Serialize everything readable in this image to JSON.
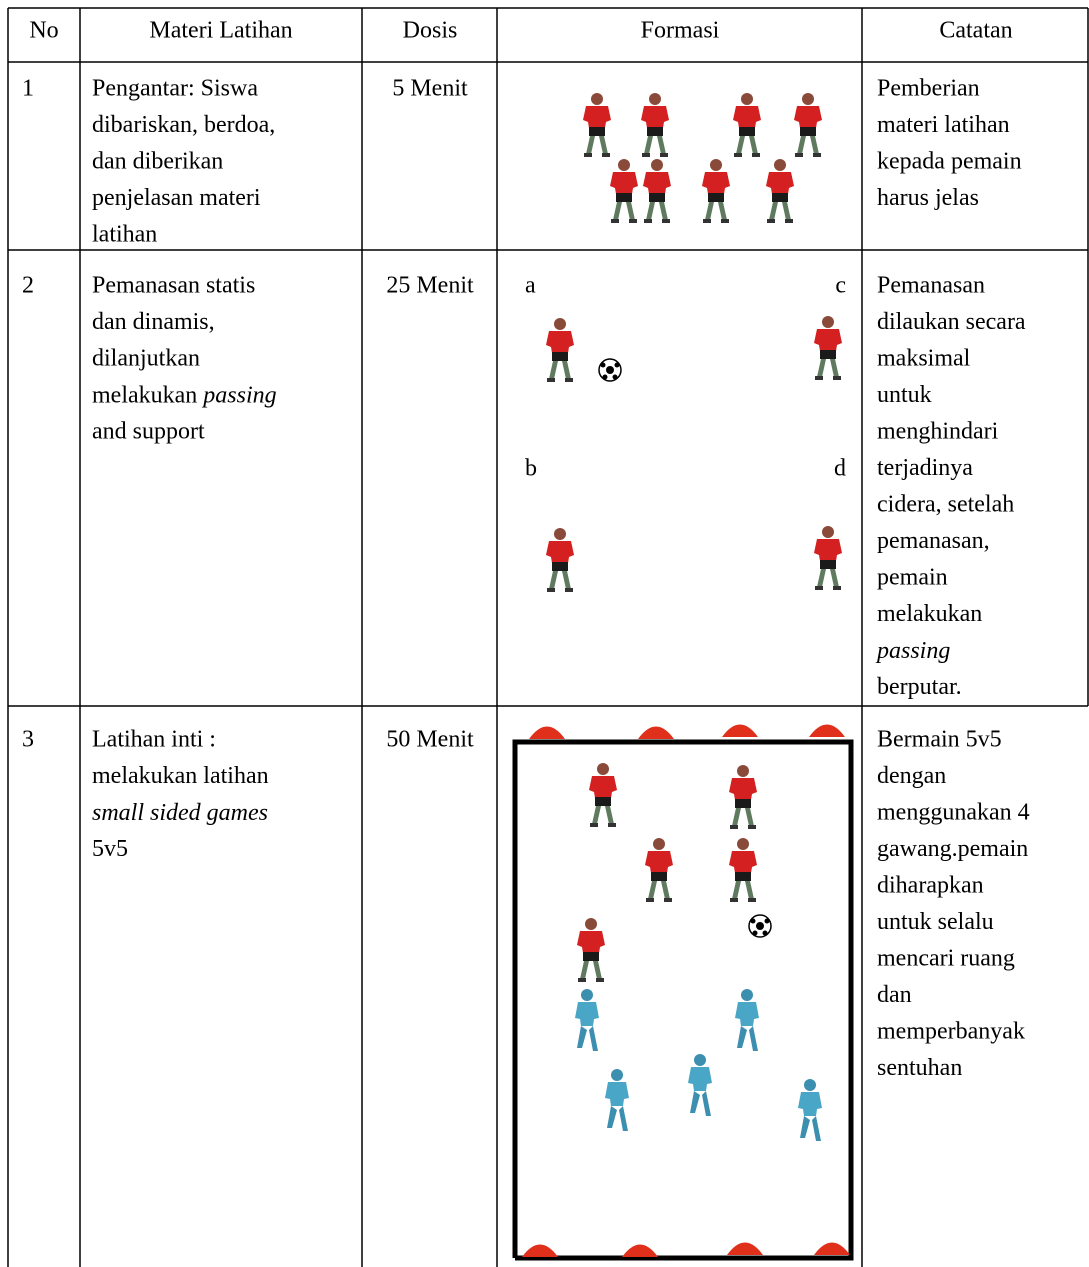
{
  "table": {
    "header": [
      "No",
      "Materi Latihan",
      "Dosis",
      "Formasi",
      "Catatan"
    ],
    "rows": [
      {
        "no": "1",
        "materi": [
          "Pengantar: Siswa",
          "dibariskan, berdoa,",
          "dan diberikan",
          "penjelasan materi",
          "latihan"
        ],
        "dosis": "5 Menit",
        "catatan": [
          "Pemberian",
          "materi latihan",
          "kepada pemain",
          "harus jelas"
        ]
      },
      {
        "no": "2",
        "materi": [
          "Pemanasan statis",
          "dan dinamis,",
          "dilanjutkan",
          [
            "melakukan ",
            {
              "text": "passing",
              "style": "italic"
            }
          ],
          "and support"
        ],
        "dosis": "25 Menit",
        "formation_labels": [
          "a",
          "c",
          "b",
          "d"
        ],
        "catatan": [
          "Pemanasan",
          "dilaukan secara",
          "maksimal",
          "untuk",
          "menghindari",
          "terjadinya",
          "cidera, setelah",
          "pemanasan,",
          "pemain",
          "melakukan",
          [
            {
              "text": "passing",
              "style": "italic"
            }
          ],
          "berputar."
        ]
      },
      {
        "no": "3",
        "materi": [
          "Latihan inti :",
          "melakukan latihan",
          [
            {
              "text": "small sided games",
              "style": "italic"
            }
          ],
          "5v5"
        ],
        "dosis": "50 Menit",
        "catatan": [
          "Bermain 5v5",
          "dengan",
          "menggunakan 4",
          "gawang.pemain",
          "diharapkan",
          "untuk selalu",
          "mencari ruang",
          "dan",
          "memperbanyak",
          "sentuhan"
        ]
      }
    ]
  }
}
